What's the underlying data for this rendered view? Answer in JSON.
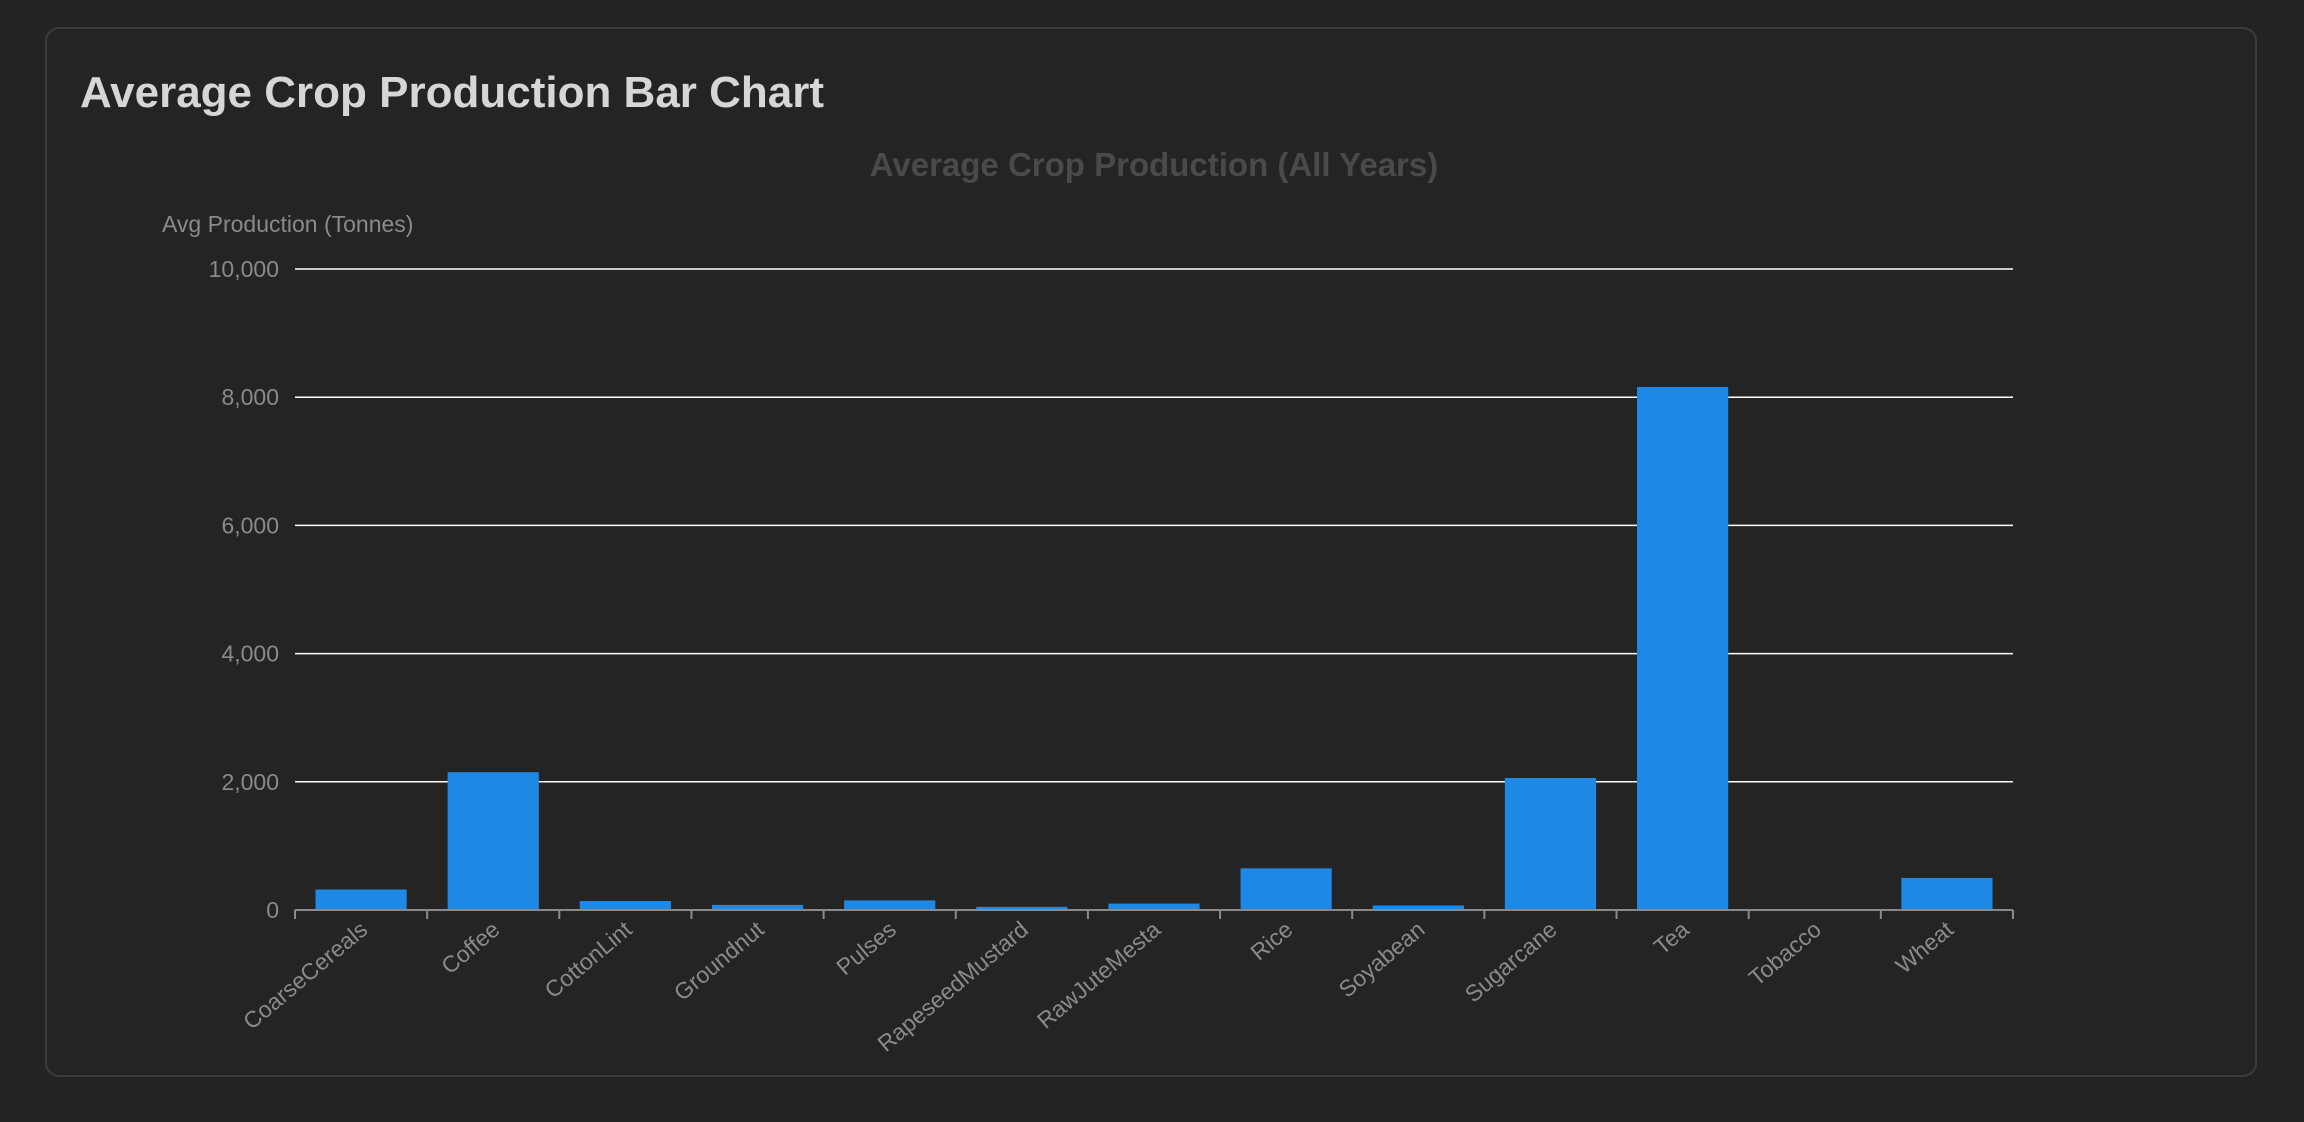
{
  "page": {
    "card_title": "Average Crop Production Bar Chart"
  },
  "chart_data": {
    "type": "bar",
    "title": "Average Crop Production (All Years)",
    "ylabel": "Avg Production (Tonnes)",
    "xlabel": "",
    "categories": [
      "CoarseCereals",
      "Coffee",
      "CottonLint",
      "Groundnut",
      "Pulses",
      "RapeseedMustard",
      "RawJuteMesta",
      "Rice",
      "Soyabean",
      "Sugarcane",
      "Tea",
      "Tobacco",
      "Wheat"
    ],
    "values": [
      320,
      2150,
      140,
      80,
      150,
      50,
      100,
      650,
      70,
      2060,
      8160,
      10,
      500
    ],
    "ylim": [
      0,
      10000
    ],
    "yticks": [
      0,
      2000,
      4000,
      6000,
      8000,
      10000
    ],
    "ytick_labels": [
      "0",
      "2,000",
      "4,000",
      "6,000",
      "8,000",
      "10,000"
    ],
    "grid": true,
    "legend": "none",
    "colors": {
      "bar": "#1e88e5",
      "grid": "#ffffff",
      "axis": "#8a8a8a",
      "tick_text": "#8a8a8a",
      "title_text": "#4a4a4a"
    }
  }
}
